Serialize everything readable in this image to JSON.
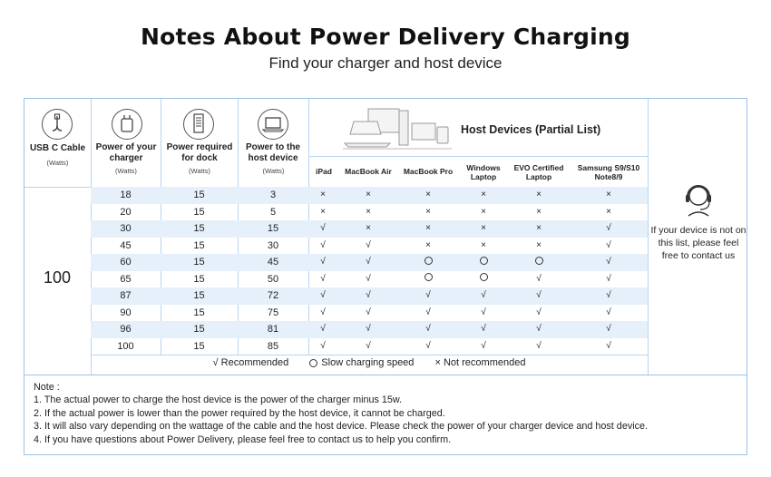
{
  "title": "Notes About Power Delivery Charging",
  "subtitle": "Find your charger and host device",
  "headers": {
    "cable": "USB C Cable",
    "cable_unit": "(Watts)",
    "charger": "Power of your charger",
    "charger_unit": "(Watts)",
    "dock": "Power required for dock",
    "dock_unit": "(Watts)",
    "host": "Power to the host device",
    "host_unit": "(Watts)",
    "host_devices": "Host Devices (Partial List)"
  },
  "devices": [
    "iPad",
    "MacBook Air",
    "MacBook Pro",
    "Windows Laptop",
    "EVO Certified Laptop",
    "Samsung S9/S10 Note8/9"
  ],
  "cable_watts": "100",
  "rows": [
    {
      "charger": "18",
      "dock": "15",
      "host": "3",
      "marks": [
        "x",
        "x",
        "x",
        "x",
        "x",
        "x"
      ]
    },
    {
      "charger": "20",
      "dock": "15",
      "host": "5",
      "marks": [
        "x",
        "x",
        "x",
        "x",
        "x",
        "x"
      ]
    },
    {
      "charger": "30",
      "dock": "15",
      "host": "15",
      "marks": [
        "v",
        "x",
        "x",
        "x",
        "x",
        "v"
      ]
    },
    {
      "charger": "45",
      "dock": "15",
      "host": "30",
      "marks": [
        "v",
        "v",
        "x",
        "x",
        "x",
        "v"
      ]
    },
    {
      "charger": "60",
      "dock": "15",
      "host": "45",
      "marks": [
        "v",
        "v",
        "o",
        "o",
        "o",
        "v"
      ]
    },
    {
      "charger": "65",
      "dock": "15",
      "host": "50",
      "marks": [
        "v",
        "v",
        "o",
        "o",
        "v",
        "v"
      ]
    },
    {
      "charger": "87",
      "dock": "15",
      "host": "72",
      "marks": [
        "v",
        "v",
        "v",
        "v",
        "v",
        "v"
      ]
    },
    {
      "charger": "90",
      "dock": "15",
      "host": "75",
      "marks": [
        "v",
        "v",
        "v",
        "v",
        "v",
        "v"
      ]
    },
    {
      "charger": "96",
      "dock": "15",
      "host": "81",
      "marks": [
        "v",
        "v",
        "v",
        "v",
        "v",
        "v"
      ]
    },
    {
      "charger": "100",
      "dock": "15",
      "host": "85",
      "marks": [
        "v",
        "v",
        "v",
        "v",
        "v",
        "v"
      ]
    }
  ],
  "symbols": {
    "v": "√",
    "x": "×"
  },
  "legend": {
    "recommended": "√ Recommended",
    "slow": "Slow charging speed",
    "not": "× Not recommended"
  },
  "contact": "If your device is not on this list, please feel free to contact us",
  "notes": {
    "label": "Note :",
    "items": [
      "1. The actual power to charge the host device is the power of the charger minus 15w.",
      "2. If the actual power is lower than the power required by the host device, it cannot be charged.",
      "3. It will also vary depending on the wattage of the cable and the host device. Please check the power of your charger device and host device.",
      "4. If you have questions about Power Delivery, please feel free to contact us to help you confirm."
    ]
  },
  "icons": [
    "usb-c-cable-icon",
    "charger-icon",
    "dock-icon",
    "laptop-icon",
    "host-devices-illustration",
    "headset-icon"
  ]
}
